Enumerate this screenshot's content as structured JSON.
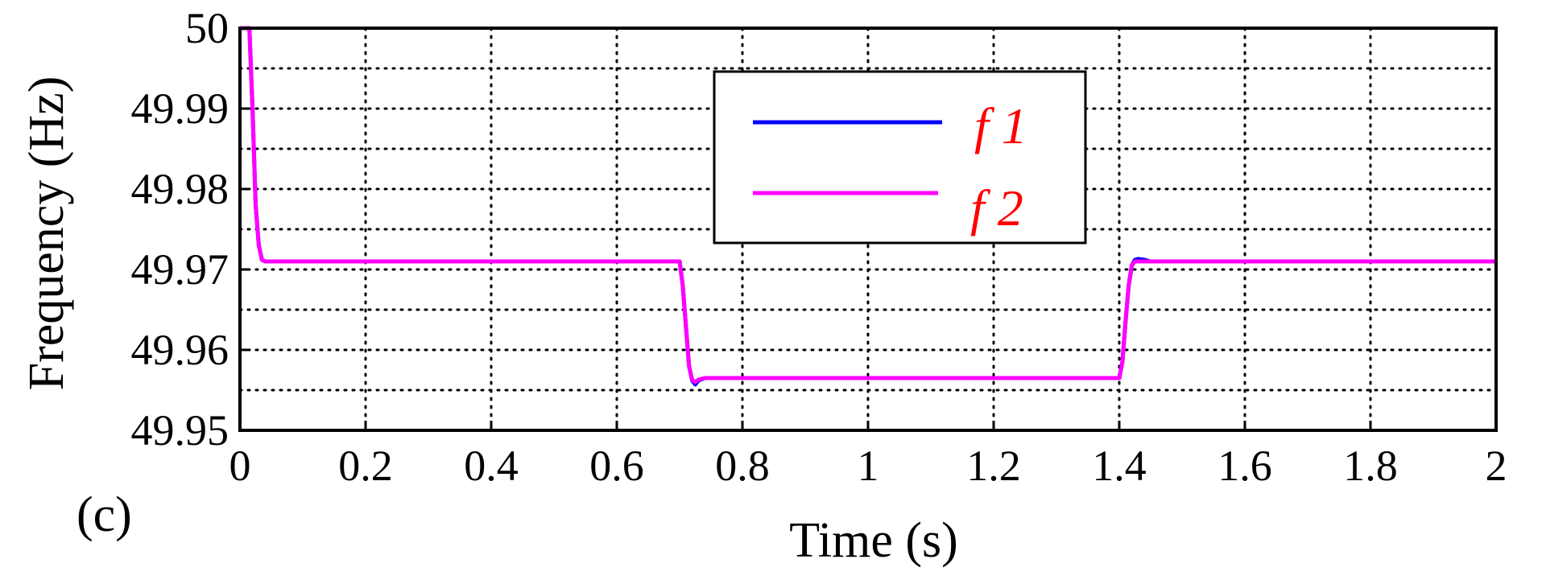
{
  "chart_data": {
    "type": "line",
    "panel_label": "(c)",
    "xlabel": "Time (s)",
    "ylabel": "Frequency (Hz)",
    "xlim": [
      0,
      2
    ],
    "ylim": [
      49.95,
      50
    ],
    "xticks": [
      0,
      0.2,
      0.4,
      0.6,
      0.8,
      1,
      1.2,
      1.4,
      1.6,
      1.8,
      2
    ],
    "xtick_labels": [
      "0",
      "0.2",
      "0.4",
      "0.6",
      "0.8",
      "1",
      "1.2",
      "1.4",
      "1.6",
      "1.8",
      "2"
    ],
    "yticks": [
      49.95,
      49.96,
      49.97,
      49.98,
      49.99,
      50
    ],
    "ytick_labels": [
      "49.95",
      "49.96",
      "49.97",
      "49.98",
      "49.99",
      "50"
    ],
    "y_minor_gridlines": [
      49.955,
      49.965,
      49.975,
      49.985,
      49.995
    ],
    "grid": true,
    "legend_position": "top-center",
    "series": [
      {
        "name": "f 1",
        "color": "#0000ff",
        "x": [
          0,
          0.015,
          0.02,
          0.025,
          0.03,
          0.035,
          0.04,
          0.05,
          0.7,
          0.705,
          0.71,
          0.715,
          0.72,
          0.725,
          0.73,
          0.74,
          0.76,
          0.8,
          1.4,
          1.405,
          1.41,
          1.415,
          1.42,
          1.425,
          1.43,
          1.44,
          1.45,
          1.46,
          2.0
        ],
        "y": [
          50.0,
          50.0,
          49.99,
          49.978,
          49.973,
          49.9712,
          49.971,
          49.971,
          49.971,
          49.968,
          49.963,
          49.958,
          49.9562,
          49.9557,
          49.9562,
          49.9565,
          49.9565,
          49.9565,
          49.9565,
          49.9585,
          49.9635,
          49.968,
          49.9705,
          49.9712,
          49.9713,
          49.9712,
          49.971,
          49.971,
          49.971
        ]
      },
      {
        "name": "f 2",
        "color": "#ff00ff",
        "x": [
          0,
          0.015,
          0.02,
          0.025,
          0.03,
          0.035,
          0.04,
          0.05,
          0.7,
          0.705,
          0.71,
          0.715,
          0.72,
          0.725,
          0.73,
          0.74,
          0.76,
          0.8,
          1.4,
          1.405,
          1.41,
          1.415,
          1.42,
          1.425,
          1.43,
          1.44,
          1.45,
          1.46,
          2.0
        ],
        "y": [
          50.0,
          50.0,
          49.99,
          49.978,
          49.973,
          49.9712,
          49.971,
          49.971,
          49.971,
          49.968,
          49.963,
          49.958,
          49.9563,
          49.956,
          49.9563,
          49.9565,
          49.9565,
          49.9565,
          49.9565,
          49.9585,
          49.9635,
          49.968,
          49.9705,
          49.971,
          49.971,
          49.971,
          49.971,
          49.971,
          49.971
        ]
      }
    ]
  }
}
